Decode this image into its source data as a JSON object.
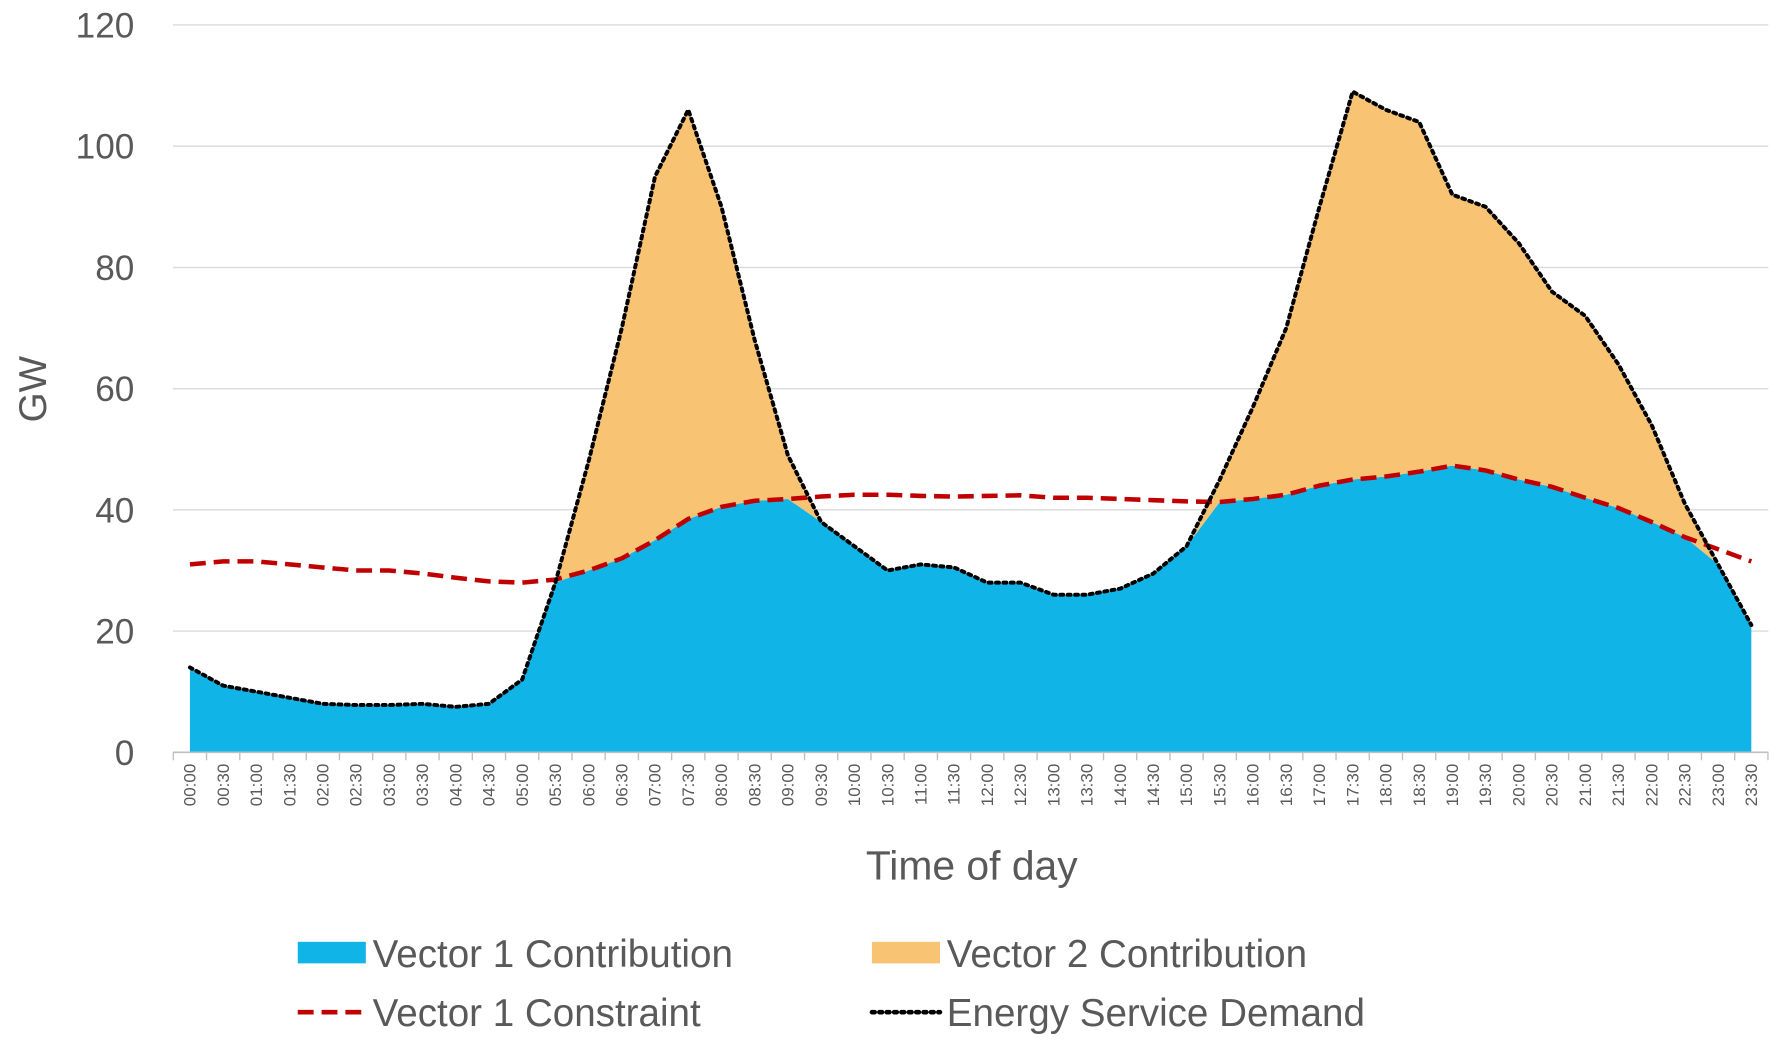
{
  "chart_data": {
    "type": "area",
    "x_label": "Time of day",
    "y_label": "GW",
    "categories": [
      "00:00",
      "00:30",
      "01:00",
      "01:30",
      "02:00",
      "02:30",
      "03:00",
      "03:30",
      "04:00",
      "04:30",
      "05:00",
      "05:30",
      "06:00",
      "06:30",
      "07:00",
      "07:30",
      "08:00",
      "08:30",
      "09:00",
      "09:30",
      "10:00",
      "10:30",
      "11:00",
      "11:30",
      "12:00",
      "12:30",
      "13:00",
      "13:30",
      "14:00",
      "14:30",
      "15:00",
      "15:30",
      "16:00",
      "16:30",
      "17:00",
      "17:30",
      "18:00",
      "18:30",
      "19:00",
      "19:30",
      "20:00",
      "20:30",
      "21:00",
      "21:30",
      "22:00",
      "22:30",
      "23:00",
      "23:30"
    ],
    "ylim": [
      0,
      120
    ],
    "yticks": [
      0,
      20,
      40,
      60,
      80,
      100,
      120
    ],
    "grid": true,
    "legend": "bottom",
    "series": [
      {
        "name": "Vector 1 Contribution",
        "kind": "area",
        "stacked": true,
        "color": "#10b4e6",
        "values": [
          14,
          11,
          10,
          9,
          8,
          7.8,
          7.8,
          8,
          7.5,
          8,
          12,
          28,
          30,
          32,
          35,
          38.5,
          40.5,
          41.5,
          41.8,
          38,
          34,
          30,
          31,
          30.5,
          28,
          28,
          26,
          26,
          27,
          29.5,
          34,
          41.3,
          41.8,
          42.5,
          44,
          45,
          45.5,
          46.3,
          47.3,
          46.5,
          45,
          43.8,
          42,
          40.3,
          38,
          35.5,
          31,
          21
        ]
      },
      {
        "name": "Vector 2 Contribution",
        "kind": "area",
        "stacked": true,
        "color": "#f9c374",
        "values": [
          0,
          0,
          0,
          0,
          0,
          0,
          0,
          0,
          0,
          0,
          0,
          0,
          18,
          38,
          60,
          67.5,
          49.5,
          26.5,
          7.2,
          0,
          0,
          0,
          0,
          0,
          0,
          0,
          0,
          0,
          0,
          0,
          0,
          3.7,
          15.2,
          27.5,
          46,
          64,
          60.5,
          57.7,
          44.7,
          43.5,
          39,
          32.2,
          30,
          23.7,
          16,
          5.5,
          0,
          0
        ]
      },
      {
        "name": "Vector 1 Constraint",
        "kind": "line",
        "style": "dashed",
        "color": "#c00000",
        "values": [
          31,
          31.5,
          31.5,
          31,
          30.5,
          30,
          30,
          29.5,
          28.8,
          28.2,
          28,
          28.5,
          30,
          32,
          35,
          38.5,
          40.5,
          41.5,
          41.8,
          42.2,
          42.5,
          42.5,
          42.3,
          42.2,
          42.3,
          42.4,
          42,
          42,
          41.8,
          41.6,
          41.4,
          41.3,
          41.8,
          42.5,
          44,
          45,
          45.5,
          46.3,
          47.3,
          46.5,
          45,
          43.8,
          42,
          40.3,
          38,
          35.5,
          33.5,
          31.5
        ]
      },
      {
        "name": "Energy Service Demand",
        "kind": "line",
        "style": "dotted",
        "color": "#000000",
        "values": [
          14,
          11,
          10,
          9,
          8,
          7.8,
          7.8,
          8,
          7.5,
          8,
          12,
          28,
          48,
          70,
          95,
          106,
          90,
          68,
          49,
          38,
          34,
          30,
          31,
          30.5,
          28,
          28,
          26,
          26,
          27,
          29.5,
          34,
          45,
          57,
          70,
          90,
          109,
          106,
          104,
          92,
          90,
          84,
          76,
          72,
          64,
          54,
          41,
          31,
          21
        ]
      }
    ]
  }
}
